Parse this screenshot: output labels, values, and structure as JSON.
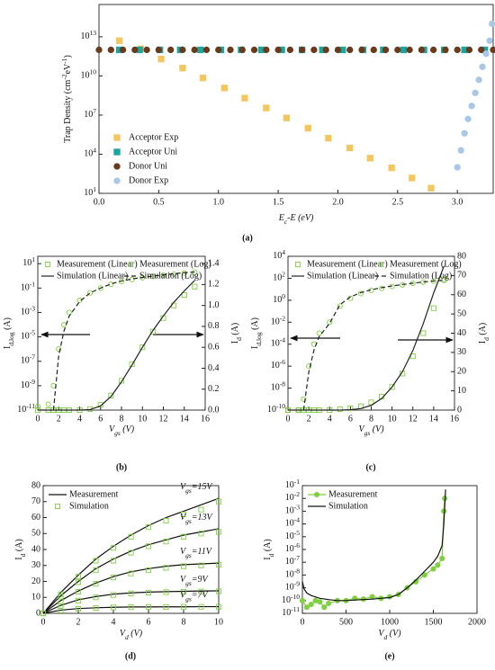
{
  "chart_data": [
    {
      "type": "scatter",
      "panel": "(a)",
      "xlabel": "E_{c}-E (eV)",
      "ylabel": "Trap Density (cm^{-2}eV^{-1})",
      "xlim": [
        0,
        3.3
      ],
      "xticks": [
        {
          "value": 0,
          "label": "0.0"
        },
        0.5,
        {
          "value": 1,
          "label": "1.0"
        },
        1.5,
        {
          "value": 2,
          "label": "2.0"
        },
        2.5,
        {
          "value": 3,
          "label": "3.0"
        }
      ],
      "ylim": [
        10,
        3000000000000000.0
      ],
      "ylog": true,
      "yticks": [
        {
          "value": 10.0,
          "label": "10^{1}"
        },
        {
          "value": 10000.0,
          "label": "10^{4}"
        },
        {
          "value": 10000000.0,
          "label": "10^{7}"
        },
        {
          "value": 10000000000.0,
          "label": "10^{10}"
        },
        {
          "value": 10000000000000.0,
          "label": "10^{13}"
        }
      ],
      "legend_loc": "lower left",
      "series": [
        {
          "name": "Acceptor Exp",
          "color": "#f5c65e",
          "marker": "square",
          "fill": "filled",
          "line": "none",
          "x": [
            0.17,
            0.35,
            0.52,
            0.7,
            0.87,
            1.05,
            1.22,
            1.4,
            1.57,
            1.75,
            1.92,
            2.1,
            2.27,
            2.45,
            2.62,
            2.78
          ],
          "values": [
            5000000000000.0,
            1200000000000.0,
            200000000000.0,
            40000000000.0,
            7000000000.0,
            1200000000.0,
            200000000.0,
            35000000.0,
            6000000.0,
            1000000.0,
            170000.0,
            30000.0,
            5000.0,
            900.0,
            150.0,
            25.0
          ]
        },
        {
          "name": "Acceptor Uni",
          "color": "#1aa6a0",
          "marker": "square",
          "fill": "filled",
          "line": "none",
          "x": [
            0.17,
            0.34,
            0.51,
            0.68,
            0.85,
            1.02,
            1.19,
            1.36,
            1.53,
            1.7,
            1.87,
            2.04,
            2.21,
            2.38,
            2.55,
            2.72,
            2.89,
            3.06,
            3.23
          ],
          "values": [
            1000000000000.0,
            1000000000000.0,
            1000000000000.0,
            1000000000000.0,
            1000000000000.0,
            1000000000000.0,
            1000000000000.0,
            1000000000000.0,
            1000000000000.0,
            1000000000000.0,
            1000000000000.0,
            1000000000000.0,
            1000000000000.0,
            1000000000000.0,
            1000000000000.0,
            1000000000000.0,
            1000000000000.0,
            1000000000000.0,
            1000000000000.0
          ]
        },
        {
          "name": "Donor Uni",
          "color": "#6b3a1c",
          "marker": "circle",
          "fill": "filled",
          "line": "none",
          "x": [
            0,
            0.1,
            0.2,
            0.3,
            0.4,
            0.5,
            0.6,
            0.7,
            0.8,
            0.9,
            1,
            1.1,
            1.2,
            1.3,
            1.4,
            1.5,
            1.6,
            1.7,
            1.8,
            1.9,
            2,
            2.1,
            2.2,
            2.3,
            2.4,
            2.5,
            2.6,
            2.7,
            2.8,
            2.9,
            3,
            3.1,
            3.2,
            3.3
          ],
          "values": [
            1000000000000.0,
            1000000000000.0,
            1000000000000.0,
            1000000000000.0,
            1000000000000.0,
            1000000000000.0,
            1000000000000.0,
            1000000000000.0,
            1000000000000.0,
            1000000000000.0,
            1000000000000.0,
            1000000000000.0,
            1000000000000.0,
            1000000000000.0,
            1000000000000.0,
            1000000000000.0,
            1000000000000.0,
            1000000000000.0,
            1000000000000.0,
            1000000000000.0,
            1000000000000.0,
            1000000000000.0,
            1000000000000.0,
            1000000000000.0,
            1000000000000.0,
            1000000000000.0,
            1000000000000.0,
            1000000000000.0,
            1000000000000.0,
            1000000000000.0,
            1000000000000.0,
            1000000000000.0,
            1000000000000.0,
            1000000000000.0
          ]
        },
        {
          "name": "Donor Exp",
          "color": "#a9c8e8",
          "marker": "circle",
          "fill": "filled",
          "line": "none",
          "x": [
            3.0,
            3.03,
            3.06,
            3.09,
            3.12,
            3.15,
            3.18,
            3.21,
            3.24,
            3.27,
            3.29
          ],
          "values": [
            1000.0,
            20000.0,
            400000.0,
            5000000.0,
            50000000.0,
            500000000.0,
            5000000000.0,
            50000000000.0,
            500000000000.0,
            5000000000000.0,
            100000000000000.0
          ]
        }
      ]
    },
    {
      "type": "scatter",
      "panel": "(b)",
      "xlabel": "V_{gs} (V)",
      "ylabel": "I_{d,log} (A)",
      "y2label": "I_{d} (A)",
      "xlim": [
        0,
        16
      ],
      "xticks": [
        0,
        2,
        4,
        6,
        8,
        10,
        12,
        14,
        16
      ],
      "ylim": [
        1e-11,
        40
      ],
      "ylog": true,
      "yticks": [
        {
          "value": 1e-11,
          "label": "10^{-11}"
        },
        {
          "value": 1e-09,
          "label": "10^{-9}"
        },
        {
          "value": 1e-07,
          "label": "10^{-7}"
        },
        {
          "value": 1e-05,
          "label": "10^{-5}"
        },
        {
          "value": 0.001,
          "label": "10^{-3}"
        },
        {
          "value": 0.1,
          "label": "10^{-1}"
        },
        {
          "value": 10,
          "label": "10^{1}"
        }
      ],
      "y2lim": [
        0,
        1.47
      ],
      "y2ticks": [
        {
          "value": 0,
          "label": "0.0"
        },
        0.2,
        0.4,
        0.6,
        0.8,
        {
          "value": 1,
          "label": "1.0"
        },
        1.2,
        1.4
      ],
      "legend_loc": "upper center",
      "x": [
        0,
        1,
        1.5,
        2,
        2.5,
        3,
        4,
        5,
        6,
        7,
        8,
        9,
        10,
        11,
        12,
        13,
        14,
        15
      ],
      "series": [
        {
          "name": "Measurement (Linear)",
          "color": "#7fcf3f",
          "marker": "square",
          "fill": "open",
          "line": "none",
          "axis": "y2",
          "values": [
            0,
            0,
            0,
            0,
            0,
            0,
            0,
            0.01,
            0.05,
            0.14,
            0.28,
            0.44,
            0.6,
            0.75,
            0.88,
            1.0,
            1.1,
            1.18
          ]
        },
        {
          "name": "Measurement (Log)",
          "color": "#7fcf3f",
          "marker": "circle",
          "fill": "open",
          "line": "none",
          "values": [
            2e-11,
            3e-11,
            1e-09,
            1e-06,
            0.0001,
            0.001,
            0.01,
            0.04,
            0.1,
            0.2,
            0.35,
            0.5,
            0.7,
            0.9,
            1.1,
            1.4,
            1.7,
            2
          ]
        },
        {
          "name": "Simulation (Linear)",
          "color": "#222222",
          "marker": "none",
          "line": "solid",
          "axis": "y2",
          "values": [
            0,
            0,
            0,
            0,
            0,
            0,
            0,
            0.005,
            0.04,
            0.13,
            0.27,
            0.43,
            0.6,
            0.76,
            0.9,
            1.03,
            1.14,
            1.24
          ]
        },
        {
          "name": "Simulation (Log)",
          "color": "#222222",
          "marker": "none",
          "line": "dashed",
          "values": [
            null,
            null,
            1e-11,
            3e-07,
            3e-05,
            0.0005,
            0.008,
            0.04,
            0.1,
            0.22,
            0.38,
            0.55,
            0.75,
            0.95,
            1.2,
            1.5,
            1.8,
            2.1
          ]
        }
      ]
    },
    {
      "type": "scatter",
      "panel": "(c)",
      "xlabel": "V_{gs} (V)",
      "ylabel": "I_{d,log} (A)",
      "y2label": "I_{d} (A)",
      "xlim": [
        0,
        16
      ],
      "xticks": [
        0,
        2,
        4,
        6,
        8,
        10,
        12,
        14,
        16
      ],
      "ylim": [
        1e-10,
        10000.0
      ],
      "ylog": true,
      "yticks": [
        {
          "value": 1e-10,
          "label": "10^{-10}"
        },
        {
          "value": 1e-08,
          "label": "10^{-8}"
        },
        {
          "value": 1e-06,
          "label": "10^{-6}"
        },
        {
          "value": 0.0001,
          "label": "10^{-4}"
        },
        {
          "value": 0.01,
          "label": "10^{-2}"
        },
        {
          "value": 1,
          "label": "10^{0}"
        },
        {
          "value": 100,
          "label": "10^{2}"
        },
        {
          "value": 10000.0,
          "label": "10^{4}"
        }
      ],
      "y2lim": [
        0,
        80
      ],
      "y2ticks": [
        0,
        10,
        20,
        30,
        40,
        50,
        60,
        70,
        80
      ],
      "legend_loc": "upper center",
      "x": [
        0,
        1,
        1.5,
        2,
        2.5,
        3,
        4,
        5,
        6,
        7,
        8,
        9,
        10,
        11,
        12,
        13,
        14,
        15
      ],
      "series": [
        {
          "name": "Measurement (Linear)",
          "color": "#7fcf3f",
          "marker": "square",
          "fill": "open",
          "line": "none",
          "axis": "y2",
          "values": [
            0,
            0,
            0,
            0,
            0,
            0,
            0,
            0.5,
            1,
            2,
            4,
            7,
            12,
            19,
            28,
            40,
            53,
            68
          ]
        },
        {
          "name": "Measurement (Log)",
          "color": "#7fcf3f",
          "marker": "circle",
          "fill": "open",
          "line": "none",
          "values": [
            1e-10,
            1e-10,
            1e-09,
            1e-06,
            0.0001,
            0.001,
            0.01,
            0.3,
            1.5,
            4,
            8,
            12,
            18,
            25,
            35,
            45,
            55,
            65
          ]
        },
        {
          "name": "Simulation (Linear)",
          "color": "#222222",
          "marker": "none",
          "line": "solid",
          "axis": "y2",
          "values": [
            0,
            0,
            0,
            0,
            0,
            0,
            0,
            0,
            0.2,
            0.8,
            2.5,
            6,
            12,
            20,
            31,
            45,
            61,
            75
          ]
        },
        {
          "name": "Simulation (Log)",
          "color": "#222222",
          "marker": "none",
          "line": "dashed",
          "values": [
            null,
            null,
            1e-10,
            3e-07,
            3e-05,
            0.0005,
            0.008,
            0.4,
            2,
            5,
            9,
            14,
            20,
            27,
            36,
            46,
            56,
            66
          ]
        }
      ]
    },
    {
      "type": "iv",
      "panel": "(d)",
      "xlabel": "V_{d} (V)",
      "ylabel": "I_{d} (A)",
      "xlim": [
        0,
        10
      ],
      "xticks": [
        0,
        2,
        4,
        6,
        8,
        10
      ],
      "ylim": [
        0,
        80
      ],
      "yticks": [
        0,
        10,
        20,
        30,
        40,
        50,
        60,
        70,
        80
      ],
      "legend_loc": "upper left",
      "legend": [
        {
          "name": "Measurement",
          "color": "#111111",
          "marker": "none",
          "line": "solid"
        },
        {
          "name": "Simulation",
          "color": "#7fcf3f",
          "marker": "square",
          "fill": "open",
          "line": "none"
        }
      ],
      "x": [
        0,
        1,
        2,
        3,
        4,
        5,
        6,
        7,
        8,
        9,
        10
      ],
      "series": [
        {
          "label": "V_{gs}=15V",
          "values": [
            0,
            13,
            24,
            34,
            42,
            49,
            55,
            60,
            64,
            68,
            72
          ],
          "simulation": [
            0,
            12,
            23,
            33,
            41,
            48,
            54,
            58,
            62,
            65,
            70
          ]
        },
        {
          "label": "V_{gs}=13V",
          "values": [
            0,
            11,
            20,
            28,
            34,
            39,
            43,
            46,
            49,
            51,
            53
          ],
          "simulation": [
            0,
            10.5,
            19.5,
            27,
            33,
            38,
            42,
            45,
            48,
            50,
            51
          ]
        },
        {
          "label": "V_{gs}=11V",
          "values": [
            0,
            8,
            14,
            19,
            23,
            26,
            28,
            29.5,
            30.5,
            31,
            31.5
          ],
          "simulation": [
            0,
            7.5,
            13.5,
            18.5,
            22.5,
            25,
            27,
            28.5,
            29.5,
            30,
            30.5
          ]
        },
        {
          "label": "V_{gs}=9V",
          "values": [
            0,
            5,
            8.5,
            10.5,
            12,
            12.8,
            13.3,
            13.6,
            13.8,
            14,
            14.1
          ],
          "simulation": [
            0,
            4.5,
            8,
            10,
            11.5,
            12.5,
            13,
            13.3,
            13.5,
            13.7,
            13.8
          ]
        },
        {
          "label": "V_{gs}=7V",
          "values": [
            0,
            2,
            3,
            3.5,
            3.8,
            4,
            4,
            4.1,
            4.1,
            4.2,
            4.2
          ],
          "simulation": [
            0,
            1.8,
            2.8,
            3.4,
            3.7,
            3.9,
            4,
            4,
            4.1,
            4.1,
            4.1
          ]
        }
      ]
    },
    {
      "type": "line",
      "panel": "(e)",
      "xlabel": "V_{d} (V)",
      "ylabel": "I_{d} (A)",
      "xlim": [
        0,
        2000
      ],
      "xticks": [
        0,
        500,
        1000,
        1500,
        2000
      ],
      "ylim": [
        1e-11,
        0.1
      ],
      "ylog": true,
      "yticks": [
        {
          "value": 1e-11,
          "label": "10^{-11}"
        },
        {
          "value": 1e-10,
          "label": "10^{-10}"
        },
        {
          "value": 1e-09,
          "label": "10^{-9}"
        },
        {
          "value": 1e-08,
          "label": "10^{-8}"
        },
        {
          "value": 1e-07,
          "label": "10^{-7}"
        },
        {
          "value": 1e-06,
          "label": "10^{-6}"
        },
        {
          "value": 1e-05,
          "label": "10^{-5}"
        },
        {
          "value": 0.0001,
          "label": "10^{-4}"
        },
        {
          "value": 0.001,
          "label": "10^{-3}"
        },
        {
          "value": 0.01,
          "label": "10^{-2}"
        },
        {
          "value": 0.1,
          "label": "10^{-1}"
        }
      ],
      "legend_loc": "upper left",
      "series": [
        {
          "name": "Measurement",
          "color": "#7fcf3f",
          "marker": "circle",
          "fill": "filled",
          "line": "solid",
          "x": [
            0,
            50,
            100,
            150,
            200,
            250,
            300,
            400,
            500,
            600,
            700,
            800,
            900,
            1000,
            1100,
            1200,
            1300,
            1400,
            1500,
            1550,
            1600,
            1620,
            1630
          ],
          "values": [
            1e-10,
            3e-11,
            5e-11,
            1e-10,
            8e-11,
            3e-11,
            6e-11,
            1e-10,
            1e-10,
            1.5e-10,
            1.3e-10,
            2e-10,
            1.5e-10,
            2e-10,
            3e-10,
            1e-09,
            3e-09,
            1e-08,
            3e-08,
            6e-08,
            2e-07,
            0.001,
            0.01
          ]
        },
        {
          "name": "Simulation",
          "color": "#111111",
          "marker": "none",
          "line": "solid",
          "x": [
            0,
            20,
            50,
            100,
            200,
            300,
            400,
            500,
            600,
            700,
            800,
            900,
            1000,
            1100,
            1200,
            1300,
            1400,
            1500,
            1550,
            1600,
            1620,
            1640
          ],
          "values": [
            3e-09,
            8e-10,
            4e-10,
            2.5e-10,
            1.5e-10,
            1.2e-10,
            1e-10,
            1e-10,
            1.1e-10,
            1.2e-10,
            1.3e-10,
            1.5e-10,
            1.7e-10,
            3e-10,
            1e-09,
            4e-09,
            2e-08,
            1e-07,
            3e-07,
            2e-06,
            0.0001,
            0.05
          ]
        }
      ]
    }
  ]
}
